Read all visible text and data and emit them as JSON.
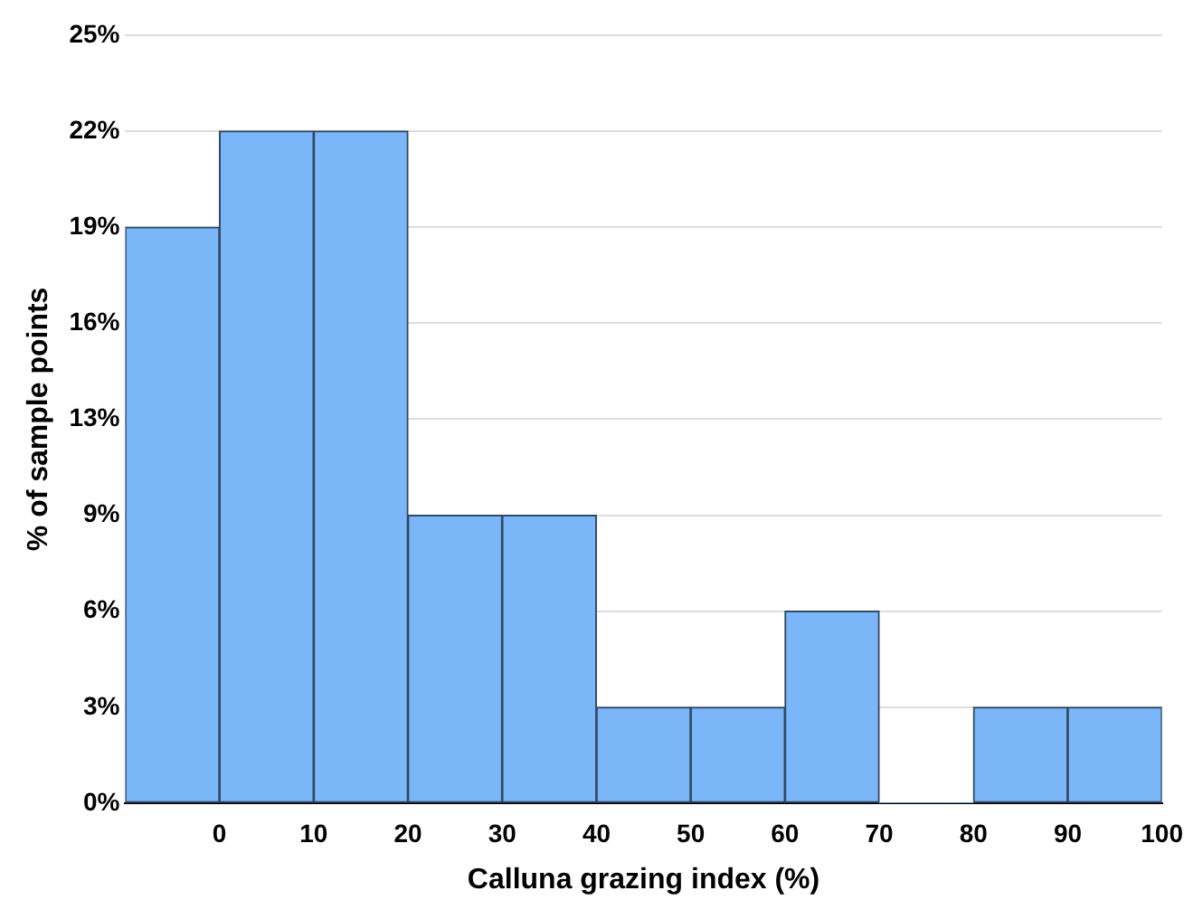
{
  "chart_data": {
    "type": "histogram",
    "xlabel": "Calluna grazing index (%)",
    "ylabel": "% of sample points",
    "bins": [
      -10,
      0,
      10,
      20,
      30,
      40,
      50,
      60,
      70,
      80,
      90,
      100
    ],
    "values": [
      18.75,
      21.875,
      21.875,
      9.375,
      9.375,
      3.125,
      3.125,
      6.25,
      0,
      3.125,
      3.125
    ],
    "color": "#7ab6f8",
    "xlim": [
      -10,
      100
    ],
    "xticks": [
      0,
      10,
      20,
      30,
      40,
      50,
      60,
      70,
      80,
      90,
      100
    ],
    "ylim": [
      0,
      25
    ],
    "yticks": [
      {
        "value": 0,
        "label": "0%"
      },
      {
        "value": 3.125,
        "label": "3%"
      },
      {
        "value": 6.25,
        "label": "6%"
      },
      {
        "value": 9.375,
        "label": "9%"
      },
      {
        "value": 12.5,
        "label": "13%"
      },
      {
        "value": 15.625,
        "label": "16%"
      },
      {
        "value": 18.75,
        "label": "19%"
      },
      {
        "value": 21.875,
        "label": "22%"
      },
      {
        "value": 25,
        "label": "25%"
      }
    ],
    "grid": "y"
  }
}
